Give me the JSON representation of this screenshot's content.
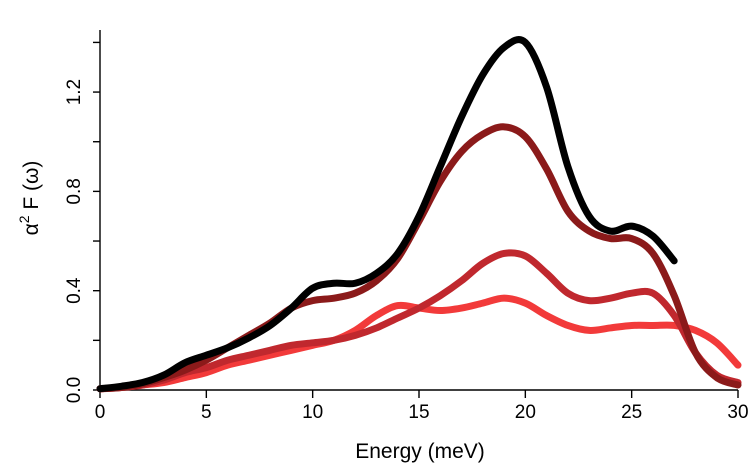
{
  "chart_data": {
    "type": "line",
    "xlabel": "Energy (meV)",
    "ylabel": {
      "alpha": "α",
      "superscript": "2",
      "rest": " F (ω)"
    },
    "xlim": [
      0,
      30
    ],
    "ylim": [
      0,
      1.45
    ],
    "xticks": [
      0,
      5,
      10,
      15,
      20,
      25,
      30
    ],
    "yticks": [
      0.0,
      0.4,
      0.8,
      1.2
    ],
    "ytick_labels": [
      "0.0",
      "0.4",
      "0.8",
      "1.2"
    ],
    "series": [
      {
        "name": "black",
        "color": "#000000",
        "x": [
          0,
          1,
          2,
          3,
          4,
          5,
          6,
          7,
          8,
          9,
          10,
          11,
          12,
          13,
          14,
          15,
          16,
          17,
          18,
          19,
          20,
          21,
          22,
          23,
          24,
          25,
          26,
          27
        ],
        "y": [
          0.005,
          0.015,
          0.03,
          0.06,
          0.11,
          0.14,
          0.17,
          0.21,
          0.26,
          0.33,
          0.41,
          0.43,
          0.43,
          0.47,
          0.55,
          0.7,
          0.9,
          1.1,
          1.27,
          1.38,
          1.4,
          1.22,
          0.9,
          0.7,
          0.64,
          0.66,
          0.62,
          0.52
        ]
      },
      {
        "name": "dark-red",
        "color": "#8b1a1a",
        "x": [
          0,
          1,
          2,
          3,
          4,
          5,
          6,
          7,
          8,
          9,
          10,
          11,
          12,
          13,
          14,
          15,
          16,
          17,
          18,
          19,
          20,
          21,
          22,
          23,
          24,
          25,
          26,
          27,
          28,
          29,
          30
        ],
        "y": [
          0.005,
          0.01,
          0.025,
          0.05,
          0.08,
          0.12,
          0.17,
          0.22,
          0.27,
          0.33,
          0.36,
          0.37,
          0.39,
          0.44,
          0.53,
          0.68,
          0.84,
          0.96,
          1.03,
          1.06,
          1.02,
          0.89,
          0.72,
          0.64,
          0.61,
          0.61,
          0.55,
          0.38,
          0.15,
          0.05,
          0.02
        ]
      },
      {
        "name": "medium-red",
        "color": "#c0282e",
        "x": [
          0,
          1,
          2,
          3,
          4,
          5,
          6,
          7,
          8,
          9,
          10,
          11,
          12,
          13,
          14,
          15,
          16,
          17,
          18,
          19,
          20,
          21,
          22,
          23,
          24,
          25,
          26,
          27,
          28,
          29,
          30
        ],
        "y": [
          0.005,
          0.01,
          0.02,
          0.04,
          0.07,
          0.09,
          0.12,
          0.14,
          0.16,
          0.18,
          0.19,
          0.2,
          0.22,
          0.25,
          0.29,
          0.33,
          0.38,
          0.44,
          0.51,
          0.55,
          0.54,
          0.47,
          0.39,
          0.36,
          0.37,
          0.39,
          0.39,
          0.3,
          0.15,
          0.06,
          0.03
        ]
      },
      {
        "name": "bright-red",
        "color": "#f23a3a",
        "x": [
          0,
          1,
          2,
          3,
          4,
          5,
          6,
          7,
          8,
          9,
          10,
          11,
          12,
          13,
          14,
          15,
          16,
          17,
          18,
          19,
          20,
          21,
          22,
          23,
          24,
          25,
          26,
          27,
          28,
          29,
          30
        ],
        "y": [
          0.005,
          0.01,
          0.02,
          0.03,
          0.05,
          0.07,
          0.1,
          0.12,
          0.14,
          0.16,
          0.18,
          0.2,
          0.24,
          0.3,
          0.34,
          0.33,
          0.32,
          0.33,
          0.35,
          0.37,
          0.35,
          0.3,
          0.26,
          0.24,
          0.25,
          0.26,
          0.26,
          0.26,
          0.24,
          0.19,
          0.1
        ]
      }
    ]
  }
}
